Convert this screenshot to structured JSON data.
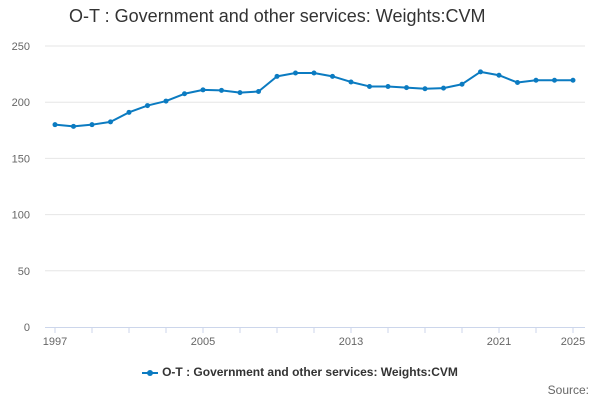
{
  "chart_data": {
    "type": "line",
    "title": "O-T : Government and other services: Weights:CVM",
    "xlabel": "",
    "ylabel": "",
    "x": [
      1997,
      1998,
      1999,
      2000,
      2001,
      2002,
      2003,
      2004,
      2005,
      2006,
      2007,
      2008,
      2009,
      2010,
      2011,
      2012,
      2013,
      2014,
      2015,
      2016,
      2017,
      2018,
      2019,
      2020,
      2021,
      2022,
      2023,
      2024,
      2025
    ],
    "series": [
      {
        "name": "O-T : Government and other services: Weights:CVM",
        "color": "#0b7bc1",
        "values": [
          180,
          178.5,
          180,
          182.5,
          191,
          197,
          201,
          207.5,
          211,
          210.5,
          208.5,
          209.5,
          223,
          226,
          226,
          223,
          218,
          214,
          214,
          213,
          212,
          212.5,
          216,
          227,
          224,
          217.5,
          219.5,
          219.5,
          219.5
        ]
      }
    ],
    "ylim": [
      0,
      250
    ],
    "yticks": [
      0,
      50,
      100,
      150,
      200,
      250
    ],
    "xticks": [
      1997,
      2005,
      2013,
      2021,
      2025
    ],
    "grid": true,
    "legend_position": "bottom"
  },
  "source_label": "Source:"
}
